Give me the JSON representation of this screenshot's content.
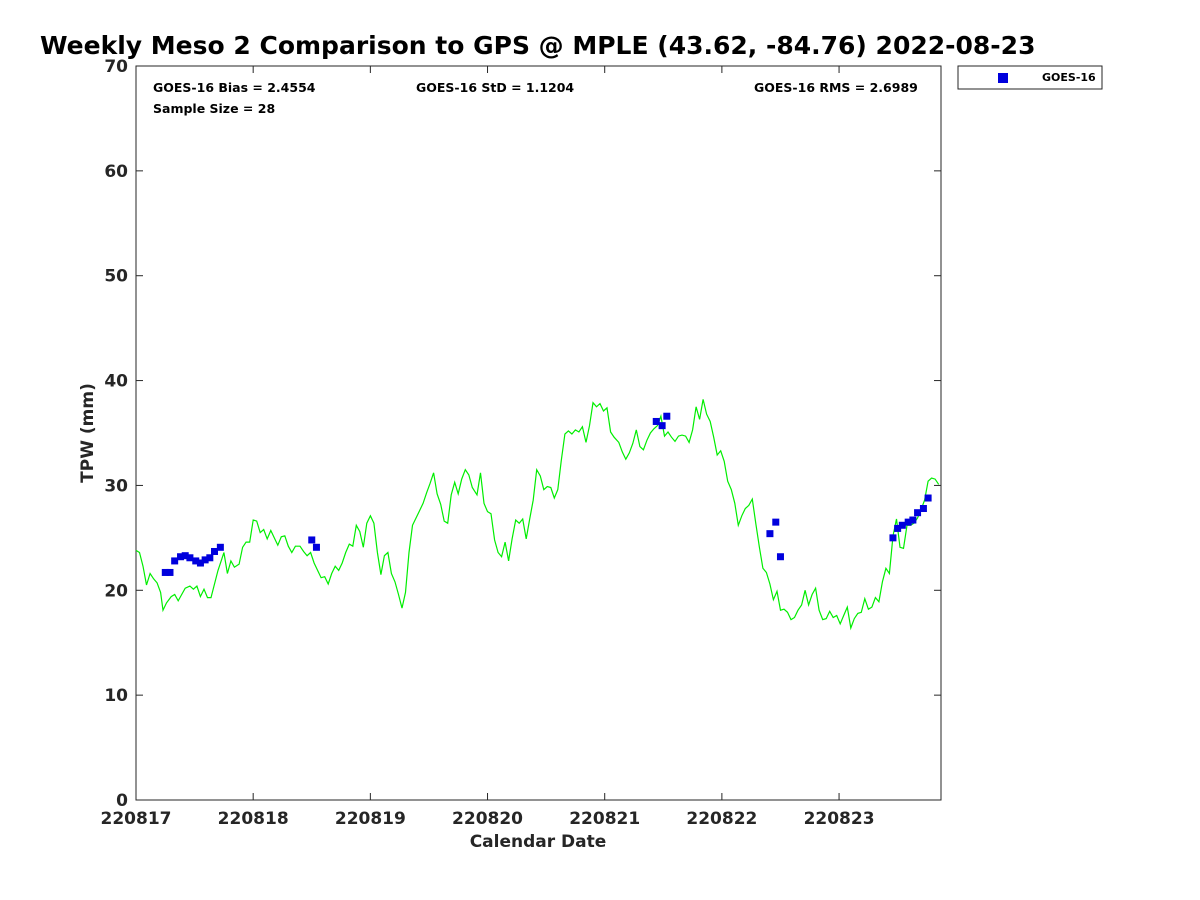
{
  "chart_data": {
    "type": "scatter",
    "title": "Weekly Meso 2 Comparison to GPS @ MPLE (43.62, -84.76) 2022-08-23",
    "xlabel": "Calendar Date",
    "ylabel": "TPW (mm)",
    "xlim": [
      0,
      6.87
    ],
    "ylim": [
      0,
      70
    ],
    "x_ticks": [
      0,
      1,
      2,
      3,
      4,
      5,
      6
    ],
    "x_tick_labels": [
      "220817",
      "220818",
      "220819",
      "220820",
      "220821",
      "220822",
      "220823"
    ],
    "y_ticks": [
      0,
      10,
      20,
      30,
      40,
      50,
      60,
      70
    ],
    "y_tick_labels": [
      "0",
      "10",
      "20",
      "30",
      "40",
      "50",
      "60",
      "70"
    ],
    "grid": false,
    "stats": {
      "bias": "GOES-16 Bias = 2.4554",
      "std": "GOES-16 StD = 1.1204",
      "rms": "GOES-16 RMS = 2.6989",
      "sample": "Sample Size = 28"
    },
    "legend": {
      "entries": [
        "GOES-16"
      ],
      "position": "top-right outside"
    },
    "series": [
      {
        "name": "GOES-16",
        "kind": "markers",
        "color": "#0000dd",
        "points": [
          [
            0.25,
            21.7
          ],
          [
            0.29,
            21.7
          ],
          [
            0.33,
            22.8
          ],
          [
            0.38,
            23.2
          ],
          [
            0.42,
            23.3
          ],
          [
            0.46,
            23.1
          ],
          [
            0.51,
            22.8
          ],
          [
            0.55,
            22.6
          ],
          [
            0.59,
            22.9
          ],
          [
            0.63,
            23.1
          ],
          [
            0.67,
            23.7
          ],
          [
            0.72,
            24.1
          ],
          [
            1.5,
            24.8
          ],
          [
            1.54,
            24.1
          ],
          [
            4.44,
            36.1
          ],
          [
            4.49,
            35.7
          ],
          [
            4.53,
            36.6
          ],
          [
            5.41,
            25.4
          ],
          [
            5.46,
            26.5
          ],
          [
            5.5,
            23.2
          ],
          [
            6.46,
            25.0
          ],
          [
            6.5,
            25.9
          ],
          [
            6.54,
            26.2
          ],
          [
            6.59,
            26.5
          ],
          [
            6.63,
            26.7
          ],
          [
            6.67,
            27.4
          ],
          [
            6.72,
            27.8
          ],
          [
            6.76,
            28.8
          ]
        ]
      },
      {
        "name": "GPS",
        "kind": "line",
        "color": "#00ee00",
        "points": [
          [
            0.0,
            23.8
          ],
          [
            0.03,
            23.6
          ],
          [
            0.06,
            22.3
          ],
          [
            0.09,
            20.5
          ],
          [
            0.12,
            21.6
          ],
          [
            0.15,
            21.1
          ],
          [
            0.18,
            20.7
          ],
          [
            0.21,
            19.8
          ],
          [
            0.23,
            18.1
          ],
          [
            0.26,
            18.8
          ],
          [
            0.3,
            19.4
          ],
          [
            0.33,
            19.6
          ],
          [
            0.36,
            19.0
          ],
          [
            0.39,
            19.6
          ],
          [
            0.42,
            20.2
          ],
          [
            0.46,
            20.4
          ],
          [
            0.49,
            20.1
          ],
          [
            0.52,
            20.4
          ],
          [
            0.55,
            19.4
          ],
          [
            0.58,
            20.1
          ],
          [
            0.61,
            19.3
          ],
          [
            0.64,
            19.3
          ],
          [
            0.67,
            20.6
          ],
          [
            0.7,
            21.9
          ],
          [
            0.73,
            22.9
          ],
          [
            0.75,
            23.6
          ],
          [
            0.78,
            21.6
          ],
          [
            0.81,
            22.8
          ],
          [
            0.84,
            22.2
          ],
          [
            0.88,
            22.5
          ],
          [
            0.91,
            24.1
          ],
          [
            0.94,
            24.6
          ],
          [
            0.97,
            24.6
          ],
          [
            1.0,
            26.7
          ],
          [
            1.03,
            26.6
          ],
          [
            1.06,
            25.5
          ],
          [
            1.09,
            25.8
          ],
          [
            1.12,
            24.9
          ],
          [
            1.15,
            25.7
          ],
          [
            1.18,
            25.0
          ],
          [
            1.21,
            24.3
          ],
          [
            1.24,
            25.1
          ],
          [
            1.27,
            25.2
          ],
          [
            1.3,
            24.2
          ],
          [
            1.33,
            23.6
          ],
          [
            1.36,
            24.2
          ],
          [
            1.4,
            24.2
          ],
          [
            1.43,
            23.7
          ],
          [
            1.46,
            23.3
          ],
          [
            1.49,
            23.6
          ],
          [
            1.52,
            22.6
          ],
          [
            1.55,
            21.9
          ],
          [
            1.58,
            21.2
          ],
          [
            1.61,
            21.3
          ],
          [
            1.64,
            20.6
          ],
          [
            1.67,
            21.6
          ],
          [
            1.7,
            22.3
          ],
          [
            1.73,
            21.9
          ],
          [
            1.76,
            22.6
          ],
          [
            1.79,
            23.6
          ],
          [
            1.82,
            24.4
          ],
          [
            1.85,
            24.2
          ],
          [
            1.88,
            26.2
          ],
          [
            1.91,
            25.6
          ],
          [
            1.94,
            24.1
          ],
          [
            1.97,
            26.4
          ],
          [
            2.0,
            27.1
          ],
          [
            2.03,
            26.4
          ],
          [
            2.06,
            23.6
          ],
          [
            2.09,
            21.5
          ],
          [
            2.12,
            23.3
          ],
          [
            2.15,
            23.6
          ],
          [
            2.18,
            21.6
          ],
          [
            2.21,
            20.8
          ],
          [
            2.24,
            19.6
          ],
          [
            2.27,
            18.3
          ],
          [
            2.3,
            19.8
          ],
          [
            2.33,
            23.6
          ],
          [
            2.36,
            26.2
          ],
          [
            2.39,
            26.9
          ],
          [
            2.42,
            27.6
          ],
          [
            2.45,
            28.3
          ],
          [
            2.48,
            29.3
          ],
          [
            2.51,
            30.2
          ],
          [
            2.54,
            31.2
          ],
          [
            2.57,
            29.2
          ],
          [
            2.6,
            28.2
          ],
          [
            2.63,
            26.6
          ],
          [
            2.66,
            26.4
          ],
          [
            2.69,
            29.1
          ],
          [
            2.72,
            30.3
          ],
          [
            2.75,
            29.2
          ],
          [
            2.78,
            30.6
          ],
          [
            2.81,
            31.5
          ],
          [
            2.84,
            31.0
          ],
          [
            2.87,
            29.8
          ],
          [
            2.91,
            29.1
          ],
          [
            2.94,
            31.2
          ],
          [
            2.97,
            28.3
          ],
          [
            3.0,
            27.5
          ],
          [
            3.03,
            27.3
          ],
          [
            3.06,
            24.8
          ],
          [
            3.09,
            23.6
          ],
          [
            3.12,
            23.2
          ],
          [
            3.15,
            24.6
          ],
          [
            3.18,
            22.8
          ],
          [
            3.21,
            24.9
          ],
          [
            3.24,
            26.7
          ],
          [
            3.27,
            26.4
          ],
          [
            3.3,
            26.8
          ],
          [
            3.33,
            24.9
          ],
          [
            3.36,
            26.8
          ],
          [
            3.39,
            28.6
          ],
          [
            3.42,
            31.5
          ],
          [
            3.45,
            30.9
          ],
          [
            3.48,
            29.6
          ],
          [
            3.51,
            29.9
          ],
          [
            3.54,
            29.8
          ],
          [
            3.57,
            28.8
          ],
          [
            3.6,
            29.6
          ],
          [
            3.63,
            32.4
          ],
          [
            3.66,
            34.9
          ],
          [
            3.69,
            35.2
          ],
          [
            3.72,
            34.9
          ],
          [
            3.75,
            35.3
          ],
          [
            3.78,
            35.1
          ],
          [
            3.81,
            35.6
          ],
          [
            3.84,
            34.1
          ],
          [
            3.87,
            35.7
          ],
          [
            3.9,
            37.9
          ],
          [
            3.93,
            37.5
          ],
          [
            3.96,
            37.8
          ],
          [
            3.99,
            37.1
          ],
          [
            4.02,
            37.4
          ],
          [
            4.05,
            35.1
          ],
          [
            4.08,
            34.6
          ],
          [
            4.12,
            34.1
          ],
          [
            4.15,
            33.2
          ],
          [
            4.18,
            32.5
          ],
          [
            4.21,
            33.1
          ],
          [
            4.24,
            34.0
          ],
          [
            4.27,
            35.3
          ],
          [
            4.3,
            33.7
          ],
          [
            4.33,
            33.4
          ],
          [
            4.36,
            34.3
          ],
          [
            4.39,
            35.0
          ],
          [
            4.42,
            35.4
          ],
          [
            4.45,
            35.7
          ],
          [
            4.48,
            36.6
          ],
          [
            4.51,
            34.7
          ],
          [
            4.54,
            35.1
          ],
          [
            4.57,
            34.6
          ],
          [
            4.6,
            34.2
          ],
          [
            4.63,
            34.7
          ],
          [
            4.66,
            34.8
          ],
          [
            4.69,
            34.7
          ],
          [
            4.72,
            34.1
          ],
          [
            4.75,
            35.3
          ],
          [
            4.78,
            37.5
          ],
          [
            4.81,
            36.3
          ],
          [
            4.84,
            38.2
          ],
          [
            4.87,
            36.8
          ],
          [
            4.9,
            36.1
          ],
          [
            4.93,
            34.6
          ],
          [
            4.96,
            32.9
          ],
          [
            4.99,
            33.3
          ],
          [
            5.02,
            32.3
          ],
          [
            5.05,
            30.4
          ],
          [
            5.08,
            29.6
          ],
          [
            5.11,
            28.3
          ],
          [
            5.14,
            26.2
          ],
          [
            5.17,
            27.1
          ],
          [
            5.2,
            27.8
          ],
          [
            5.23,
            28.1
          ],
          [
            5.26,
            28.7
          ],
          [
            5.29,
            26.3
          ],
          [
            5.32,
            24.1
          ],
          [
            5.35,
            22.1
          ],
          [
            5.38,
            21.7
          ],
          [
            5.41,
            20.6
          ],
          [
            5.44,
            19.1
          ],
          [
            5.47,
            19.9
          ],
          [
            5.5,
            18.1
          ],
          [
            5.53,
            18.2
          ],
          [
            5.56,
            17.9
          ],
          [
            5.59,
            17.2
          ],
          [
            5.62,
            17.4
          ],
          [
            5.65,
            18.1
          ],
          [
            5.68,
            18.6
          ],
          [
            5.71,
            20.0
          ],
          [
            5.74,
            18.6
          ],
          [
            5.77,
            19.6
          ],
          [
            5.8,
            20.2
          ],
          [
            5.83,
            18.1
          ],
          [
            5.86,
            17.2
          ],
          [
            5.89,
            17.3
          ],
          [
            5.92,
            18.0
          ],
          [
            5.95,
            17.4
          ],
          [
            5.98,
            17.6
          ],
          [
            6.01,
            16.8
          ],
          [
            6.04,
            17.6
          ],
          [
            6.07,
            18.4
          ],
          [
            6.1,
            16.4
          ],
          [
            6.13,
            17.3
          ],
          [
            6.16,
            17.8
          ],
          [
            6.19,
            17.9
          ],
          [
            6.22,
            19.2
          ],
          [
            6.25,
            18.2
          ],
          [
            6.28,
            18.4
          ],
          [
            6.31,
            19.3
          ],
          [
            6.34,
            18.9
          ],
          [
            6.37,
            20.8
          ],
          [
            6.4,
            22.1
          ],
          [
            6.43,
            21.6
          ],
          [
            6.46,
            25.2
          ],
          [
            6.49,
            26.8
          ],
          [
            6.52,
            24.1
          ],
          [
            6.55,
            24.0
          ],
          [
            6.58,
            26.2
          ],
          [
            6.61,
            26.2
          ],
          [
            6.64,
            26.4
          ],
          [
            6.67,
            26.9
          ],
          [
            6.7,
            27.7
          ],
          [
            6.73,
            28.6
          ],
          [
            6.76,
            30.4
          ],
          [
            6.79,
            30.7
          ],
          [
            6.82,
            30.6
          ],
          [
            6.85,
            30.1
          ]
        ]
      }
    ]
  }
}
